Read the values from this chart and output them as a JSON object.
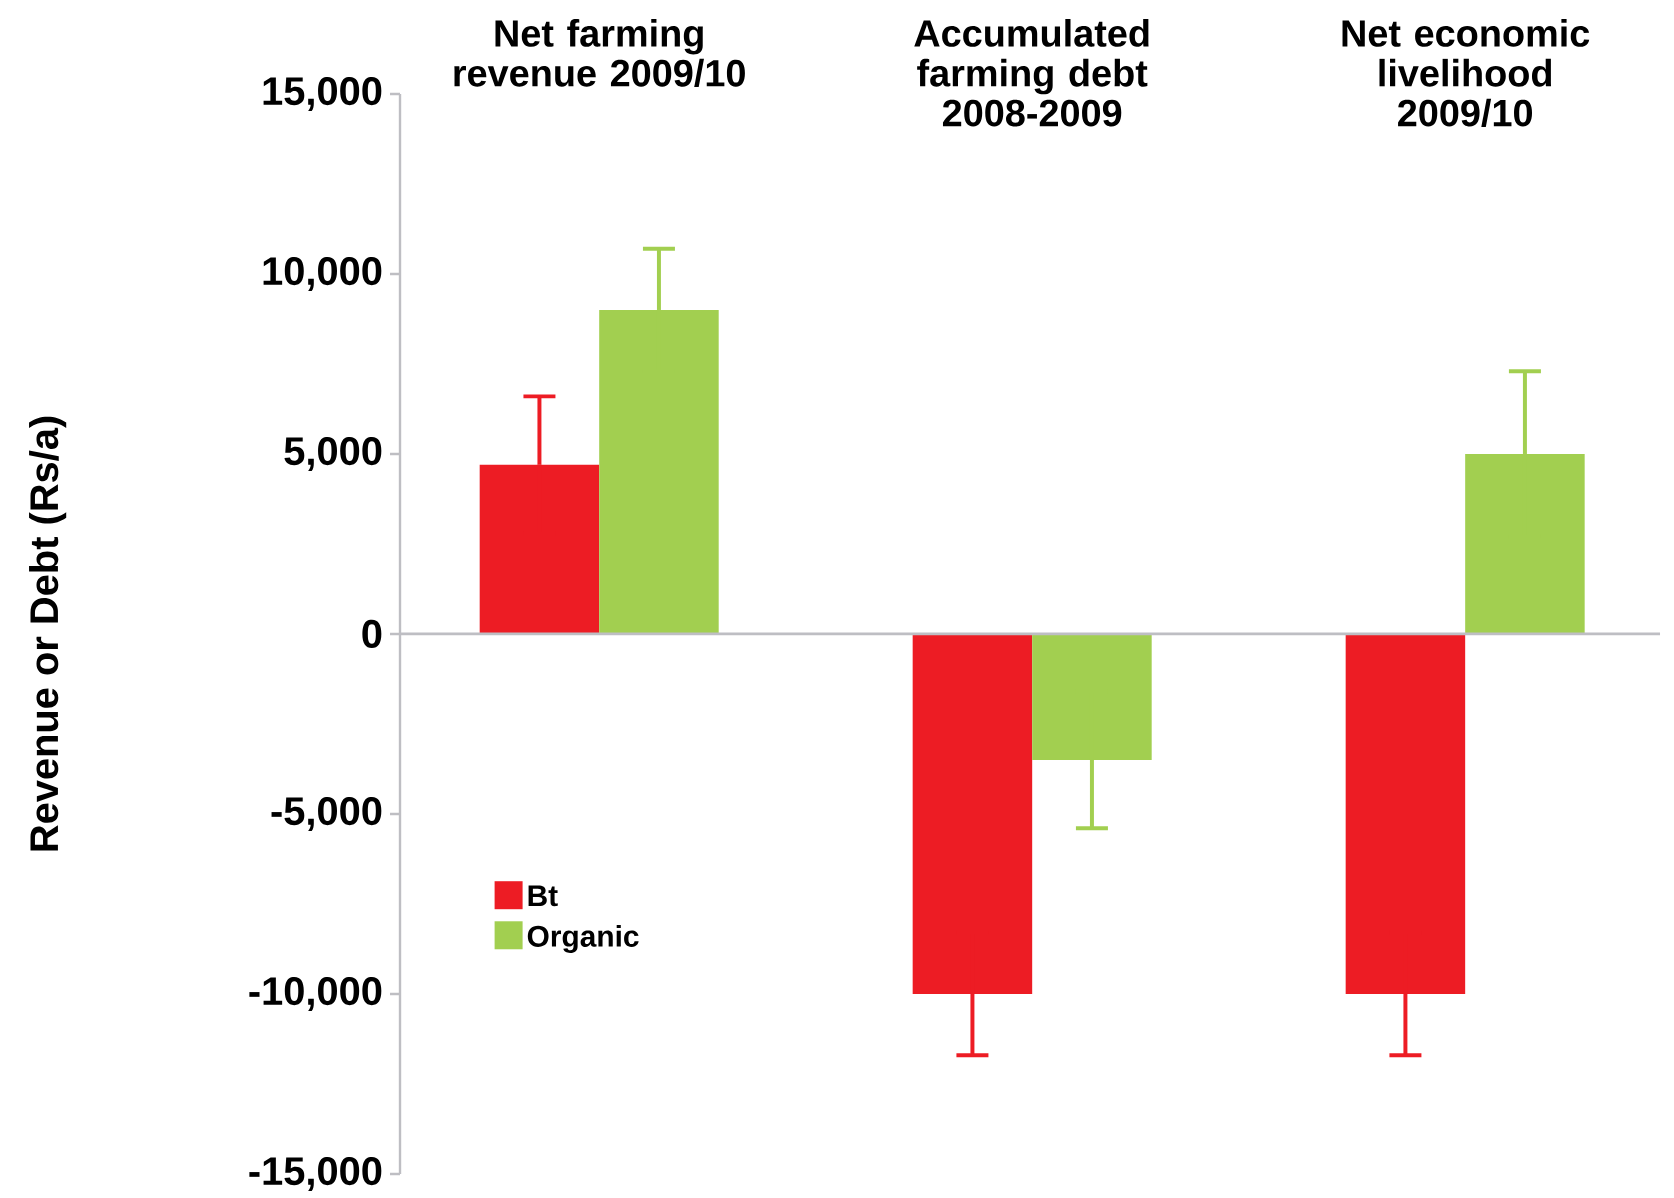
{
  "chart_data": {
    "type": "bar",
    "ylabel": "Revenue or Debt (Rs/a)",
    "categories": [
      "Net farming revenue 2009/10",
      "Accumulated farming debt 2008-2009",
      "Net economic livelihood 2009/10"
    ],
    "series": [
      {
        "name": "Bt",
        "color": "#ed1c24",
        "values": [
          4700,
          -10000,
          -10000
        ],
        "errors": [
          1900,
          1700,
          1700
        ]
      },
      {
        "name": "Organic",
        "color": "#a2cf50",
        "values": [
          9000,
          -3500,
          5000
        ],
        "errors": [
          1700,
          1900,
          2300
        ]
      }
    ],
    "ylim": [
      -15000,
      15000
    ],
    "yticks": [
      {
        "value": -15000,
        "label": "-15,000"
      },
      {
        "value": -10000,
        "label": "-10,000"
      },
      {
        "value": -5000,
        "label": "-5,000"
      },
      0,
      {
        "value": 5000,
        "label": "5,000"
      },
      {
        "value": 10000,
        "label": "10,000"
      },
      {
        "value": 15000,
        "label": "15,000"
      }
    ],
    "legend": "bottom left"
  }
}
